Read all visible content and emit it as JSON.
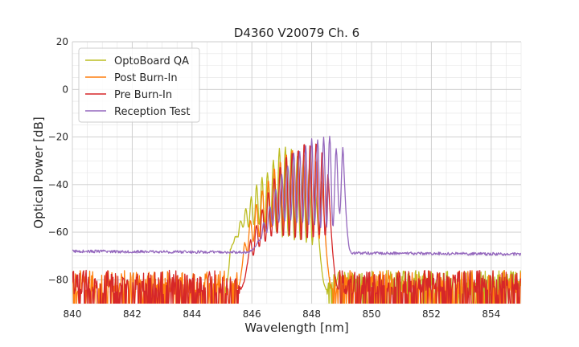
{
  "chart_data": {
    "type": "line",
    "title": "D4360 V20079 Ch. 6",
    "xlabel": "Wavelength [nm]",
    "ylabel": "Optical Power [dB]",
    "xlim": [
      840,
      855
    ],
    "ylim": [
      -90,
      20
    ],
    "x_ticks": [
      840,
      842,
      844,
      846,
      848,
      850,
      852,
      854
    ],
    "x_tick_labels": [
      "840",
      "842",
      "844",
      "846",
      "848",
      "850",
      "852",
      "854"
    ],
    "y_ticks": [
      20,
      0,
      -20,
      -40,
      -60,
      -80
    ],
    "y_tick_labels": [
      "20",
      "0",
      "−20",
      "−40",
      "−60",
      "−80"
    ],
    "x_minor_step": 0.5,
    "y_minor_step": 5,
    "grid": true,
    "legend_position": "top-left",
    "series": [
      {
        "name": "OptoBoard QA",
        "color": "#bcbd22",
        "noise_floor": -84,
        "noise_start": 845.3,
        "noise_end": 855,
        "peaks": [
          [
            845.28,
            -67
          ],
          [
            845.45,
            -62
          ],
          [
            845.62,
            -55
          ],
          [
            845.8,
            -50
          ],
          [
            845.98,
            -45
          ],
          [
            846.16,
            -40
          ],
          [
            846.34,
            -37
          ],
          [
            846.52,
            -35
          ],
          [
            846.72,
            -30
          ],
          [
            846.92,
            -25
          ],
          [
            847.12,
            -24
          ],
          [
            847.32,
            -25
          ],
          [
            847.52,
            -28
          ],
          [
            847.72,
            -30
          ],
          [
            847.92,
            -33
          ],
          [
            848.12,
            -38
          ]
        ],
        "mods": [
          -65,
          -62,
          -58,
          -58,
          -57,
          -57,
          -58,
          -58,
          -60,
          -62,
          -62,
          -63,
          -63,
          -64,
          -65
        ],
        "band": [
          845.1,
          848.5
        ],
        "valleys": []
      },
      {
        "name": "Post Burn-In",
        "color": "#ff7f0e",
        "noise_floor": -84,
        "noise_start": 840,
        "noise_end": 855,
        "peaks": [
          [
            845.75,
            -64
          ],
          [
            845.95,
            -55
          ],
          [
            846.15,
            -48
          ],
          [
            846.35,
            -42
          ],
          [
            846.55,
            -38
          ],
          [
            846.75,
            -33
          ],
          [
            846.95,
            -30
          ],
          [
            847.15,
            -27
          ],
          [
            847.35,
            -25
          ],
          [
            847.55,
            -26
          ],
          [
            847.75,
            -27
          ],
          [
            847.95,
            -26
          ],
          [
            848.15,
            -30
          ],
          [
            848.35,
            -38
          ]
        ],
        "mods": [
          -68,
          -64,
          -62,
          -60,
          -58,
          -58,
          -58,
          -59,
          -60,
          -61,
          -62,
          -62,
          -63
        ],
        "band": [
          845.5,
          848.7
        ],
        "valleys": []
      },
      {
        "name": "Pre Burn-In",
        "color": "#d62728",
        "noise_floor": -84,
        "noise_start": 840,
        "noise_end": 855,
        "peaks": [
          [
            845.95,
            -63
          ],
          [
            846.15,
            -57
          ],
          [
            846.35,
            -50
          ],
          [
            846.55,
            -43
          ],
          [
            846.75,
            -37
          ],
          [
            846.95,
            -32
          ],
          [
            847.15,
            -28
          ],
          [
            847.35,
            -26
          ],
          [
            847.55,
            -25
          ],
          [
            847.75,
            -22
          ],
          [
            847.95,
            -23
          ],
          [
            848.15,
            -22
          ],
          [
            848.35,
            -26
          ],
          [
            848.55,
            -35
          ]
        ],
        "mods": [
          -70,
          -66,
          -64,
          -62,
          -61,
          -62,
          -62,
          -63,
          -64,
          -63,
          -63,
          -62,
          -62
        ],
        "band": [
          845.6,
          848.9
        ],
        "valleys": []
      },
      {
        "name": "Reception Test",
        "color": "#9467bd",
        "noise_floor": -68,
        "noise_start": 840,
        "noise_end": 855,
        "peaks": [
          [
            846.2,
            -64
          ],
          [
            846.4,
            -56
          ],
          [
            846.6,
            -49
          ],
          [
            846.8,
            -42
          ],
          [
            847.0,
            -36
          ],
          [
            847.2,
            -32
          ],
          [
            847.4,
            -27
          ],
          [
            847.6,
            -26
          ],
          [
            847.8,
            -24
          ],
          [
            848.0,
            -21
          ],
          [
            848.2,
            -21
          ],
          [
            848.4,
            -20
          ],
          [
            848.6,
            -19.5
          ],
          [
            848.82,
            -25
          ],
          [
            849.05,
            -24
          ]
        ],
        "mods": [
          -63,
          -60,
          -57,
          -56,
          -55,
          -55,
          -56,
          -56,
          -57,
          -57,
          -58,
          -58,
          -58,
          -52
        ],
        "band": [
          845.9,
          849.3
        ],
        "valleys": [
          [
            848.92,
            -51
          ]
        ]
      }
    ]
  }
}
